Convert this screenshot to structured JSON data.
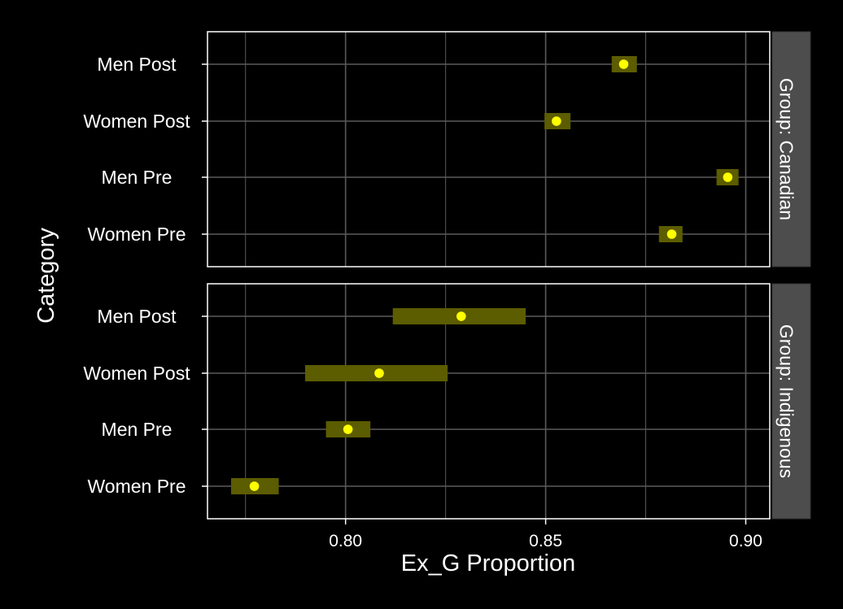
{
  "chart_data": {
    "type": "scatter",
    "xlabel": "Ex_G Proportion",
    "ylabel": "Category",
    "xlim": [
      0.7655,
      0.906
    ],
    "x_ticks": [
      0.8,
      0.85,
      0.9
    ],
    "x_tick_labels": [
      "0.80",
      "0.85",
      "0.90"
    ],
    "x_minor_grid": [
      0.775,
      0.825,
      0.875
    ],
    "grid": true,
    "legend": "none",
    "colors": {
      "background": "#000000",
      "panel_border": "#ffffff",
      "grid": "#5a5a5a",
      "strip_fill": "#4d4d4d",
      "strip_text": "#ffffff",
      "point": "#ffff00",
      "interval": "#5c5c00",
      "text": "#ffffff"
    },
    "categories": [
      "Men Post",
      "Women Post",
      "Men Pre",
      "Women Pre"
    ],
    "facets": [
      {
        "strip": "Group: Canadian",
        "points": [
          {
            "category": "Men Post",
            "x": 0.8695,
            "low": 0.8665,
            "high": 0.8728
          },
          {
            "category": "Women Post",
            "x": 0.8527,
            "low": 0.8497,
            "high": 0.8562
          },
          {
            "category": "Men Pre",
            "x": 0.8955,
            "low": 0.8927,
            "high": 0.8982
          },
          {
            "category": "Women Pre",
            "x": 0.8815,
            "low": 0.8783,
            "high": 0.8842
          }
        ]
      },
      {
        "strip": "Group: Indigenous",
        "points": [
          {
            "category": "Men Post",
            "x": 0.8289,
            "low": 0.8118,
            "high": 0.845
          },
          {
            "category": "Women Post",
            "x": 0.8084,
            "low": 0.7899,
            "high": 0.8255
          },
          {
            "category": "Men Pre",
            "x": 0.8006,
            "low": 0.7951,
            "high": 0.8062
          },
          {
            "category": "Women Pre",
            "x": 0.7772,
            "low": 0.7714,
            "high": 0.7833
          }
        ]
      }
    ]
  }
}
